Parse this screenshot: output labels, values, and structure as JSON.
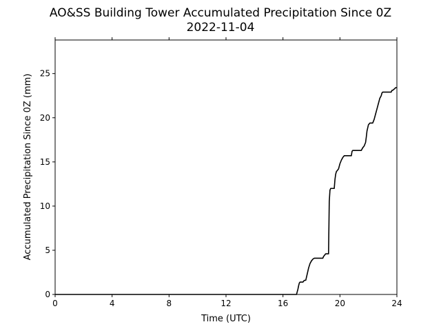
{
  "chart_data": {
    "type": "line",
    "title": "AO&SS Building Tower Accumulated Precipitation Since 0Z",
    "subtitle": "2022-11-04",
    "xlabel": "Time (UTC)",
    "ylabel": "Accumulated Precipitation Since 0Z (mm)",
    "xlim": [
      0,
      24
    ],
    "ylim": [
      0,
      28.8
    ],
    "xticks": [
      0,
      4,
      8,
      12,
      16,
      20,
      24
    ],
    "yticks": [
      0,
      5,
      10,
      15,
      20,
      25
    ],
    "grid": false,
    "legend": "none",
    "line_color": "#000000",
    "series": [
      {
        "x": [
          0,
          16.95,
          17.0,
          17.05,
          17.1,
          17.15,
          17.2,
          17.4,
          17.5,
          17.6,
          17.7,
          17.8,
          17.9,
          18.0,
          18.1,
          18.2,
          18.3,
          18.8,
          18.85,
          18.9,
          19.0,
          19.1,
          19.2,
          19.25,
          19.3,
          19.35,
          19.4,
          19.6,
          19.65,
          19.7,
          19.75,
          19.8,
          19.9,
          20.0,
          20.1,
          20.2,
          20.3,
          20.4,
          20.5,
          20.8,
          20.85,
          20.9,
          21.5,
          21.6,
          21.7,
          21.8,
          21.85,
          21.9,
          22.0,
          22.1,
          22.3,
          22.4,
          22.5,
          22.6,
          22.7,
          22.8,
          22.9,
          22.95,
          23.0,
          23.6,
          23.65,
          23.7,
          23.85,
          23.9,
          24.0
        ],
        "values": [
          0,
          0,
          0.3,
          0.6,
          1.0,
          1.3,
          1.4,
          1.4,
          1.6,
          1.6,
          2.3,
          3.0,
          3.5,
          3.8,
          4.0,
          4.1,
          4.1,
          4.1,
          4.3,
          4.4,
          4.6,
          4.6,
          4.6,
          10.5,
          11.8,
          12.0,
          12.0,
          12.0,
          13.0,
          13.6,
          13.9,
          14.0,
          14.2,
          14.8,
          15.2,
          15.5,
          15.7,
          15.7,
          15.7,
          15.7,
          16.2,
          16.3,
          16.3,
          16.6,
          16.8,
          17.2,
          17.8,
          18.5,
          19.2,
          19.4,
          19.4,
          19.8,
          20.4,
          21.0,
          21.6,
          22.2,
          22.5,
          22.8,
          22.9,
          22.9,
          23.1,
          23.1,
          23.3,
          23.4,
          23.4
        ]
      }
    ]
  }
}
